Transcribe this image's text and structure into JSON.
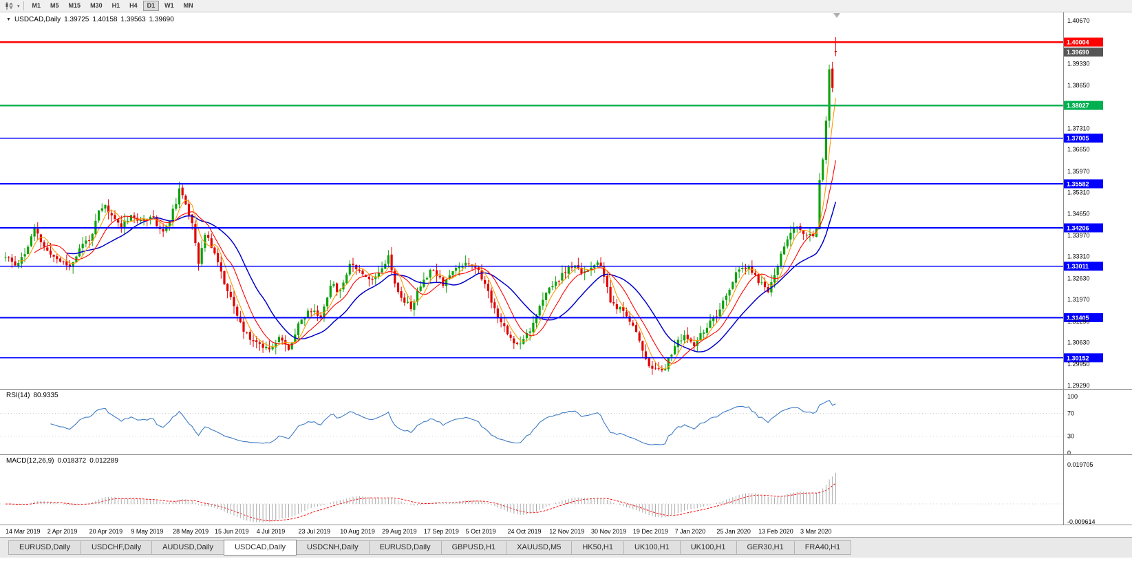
{
  "toolbar": {
    "timeframes": [
      "M1",
      "M5",
      "M15",
      "M30",
      "H1",
      "H4",
      "D1",
      "W1",
      "MN"
    ],
    "active_timeframe": "D1",
    "icons": [
      {
        "name": "chart-type-icon",
        "meaning": "candlestick chart type selector"
      },
      {
        "name": "dropdown-caret-icon",
        "glyph": "▾"
      }
    ]
  },
  "chart_data": {
    "type": "candlestick",
    "symbol": "USDCAD",
    "timeframe": "Daily",
    "header": {
      "symbol_period": "USDCAD,Daily",
      "open": "1.39725",
      "high": "1.40158",
      "low": "1.39563",
      "close": "1.39690"
    },
    "expander_glyph": "▼",
    "price_axis_ticks": [
      "1.40670",
      "1.39330",
      "1.38650",
      "1.37310",
      "1.36650",
      "1.35970",
      "1.35310",
      "1.34650",
      "1.33970",
      "1.33310",
      "1.32630",
      "1.31970",
      "1.31290",
      "1.30630",
      "1.29950",
      "1.29290"
    ],
    "price_range": [
      1.2918,
      1.4093
    ],
    "current_price": {
      "value": "1.39690",
      "bg": "#555555"
    },
    "hlines": [
      {
        "price": "1.40004",
        "color": "#FF0000",
        "width": 2.4
      },
      {
        "price": "1.38027",
        "color": "#00B050",
        "width": 2.4
      },
      {
        "price": "1.37005",
        "color": "#0000FF",
        "width": 1.8
      },
      {
        "price": "1.35582",
        "color": "#0000FF",
        "width": 1.8
      },
      {
        "price": "1.34206",
        "color": "#0000FF",
        "width": 1.8
      },
      {
        "price": "1.33011",
        "color": "#0000FF",
        "width": 1.8
      },
      {
        "price": "1.31405",
        "color": "#0000FF",
        "width": 1.8
      },
      {
        "price": "1.30152",
        "color": "#0000FF",
        "width": 1.8
      }
    ],
    "x_labels": [
      "14 Mar 2019",
      "2 Apr 2019",
      "20 Apr 2019",
      "9 May 2019",
      "28 May 2019",
      "15 Jun 2019",
      "4 Jul 2019",
      "23 Jul 2019",
      "10 Aug 2019",
      "29 Aug 2019",
      "17 Sep 2019",
      "5 Oct 2019",
      "24 Oct 2019",
      "12 Nov 2019",
      "30 Nov 2019",
      "19 Dec 2019",
      "7 Jan 2020",
      "25 Jan 2020",
      "13 Feb 2020",
      "3 Mar 2020"
    ],
    "days_per_label": 13,
    "candle_count": 259,
    "price_path": [
      [
        0,
        1.333
      ],
      [
        3,
        1.3305
      ],
      [
        6,
        1.334
      ],
      [
        9,
        1.3415
      ],
      [
        11,
        1.3378
      ],
      [
        13,
        1.3345
      ],
      [
        17,
        1.3318
      ],
      [
        20,
        1.33
      ],
      [
        24,
        1.337
      ],
      [
        27,
        1.3398
      ],
      [
        29,
        1.347
      ],
      [
        31,
        1.3488
      ],
      [
        33,
        1.3455
      ],
      [
        36,
        1.3428
      ],
      [
        39,
        1.3462
      ],
      [
        42,
        1.3436
      ],
      [
        45,
        1.3462
      ],
      [
        49,
        1.3405
      ],
      [
        52,
        1.3472
      ],
      [
        54,
        1.3535
      ],
      [
        56,
        1.3495
      ],
      [
        58,
        1.344
      ],
      [
        60,
        1.3315
      ],
      [
        62,
        1.3398
      ],
      [
        65,
        1.3348
      ],
      [
        68,
        1.3248
      ],
      [
        71,
        1.3172
      ],
      [
        74,
        1.3098
      ],
      [
        78,
        1.3062
      ],
      [
        82,
        1.3045
      ],
      [
        85,
        1.3082
      ],
      [
        88,
        1.3038
      ],
      [
        91,
        1.3125
      ],
      [
        95,
        1.3165
      ],
      [
        98,
        1.3142
      ],
      [
        101,
        1.3245
      ],
      [
        104,
        1.3222
      ],
      [
        107,
        1.3312
      ],
      [
        111,
        1.3282
      ],
      [
        114,
        1.3255
      ],
      [
        117,
        1.3302
      ],
      [
        119,
        1.3332
      ],
      [
        122,
        1.3215
      ],
      [
        126,
        1.3172
      ],
      [
        130,
        1.3262
      ],
      [
        133,
        1.3295
      ],
      [
        136,
        1.3248
      ],
      [
        139,
        1.3285
      ],
      [
        143,
        1.3315
      ],
      [
        146,
        1.3302
      ],
      [
        149,
        1.3245
      ],
      [
        152,
        1.3168
      ],
      [
        156,
        1.3088
      ],
      [
        159,
        1.3055
      ],
      [
        163,
        1.3105
      ],
      [
        166,
        1.3172
      ],
      [
        169,
        1.3232
      ],
      [
        173,
        1.3272
      ],
      [
        176,
        1.3302
      ],
      [
        179,
        1.3285
      ],
      [
        182,
        1.3295
      ],
      [
        185,
        1.3308
      ],
      [
        188,
        1.3188
      ],
      [
        191,
        1.3165
      ],
      [
        195,
        1.3122
      ],
      [
        198,
        1.3038
      ],
      [
        201,
        1.2975
      ],
      [
        205,
        1.2988
      ],
      [
        208,
        1.3052
      ],
      [
        211,
        1.3085
      ],
      [
        214,
        1.3048
      ],
      [
        217,
        1.3102
      ],
      [
        221,
        1.3145
      ],
      [
        224,
        1.3205
      ],
      [
        227,
        1.3282
      ],
      [
        231,
        1.3295
      ],
      [
        234,
        1.3255
      ],
      [
        237,
        1.3225
      ],
      [
        240,
        1.3305
      ],
      [
        243,
        1.3392
      ],
      [
        246,
        1.3425
      ],
      [
        249,
        1.339
      ],
      [
        251,
        1.3402
      ],
      [
        252,
        1.3425
      ],
      [
        253,
        1.3572
      ],
      [
        254,
        1.3638
      ],
      [
        255,
        1.3748
      ],
      [
        256,
        1.3918
      ],
      [
        257,
        1.3862
      ],
      [
        258,
        1.3969
      ]
    ],
    "last_candle": {
      "open": 1.39725,
      "high": 1.40158,
      "low": 1.39563,
      "close": 1.3969
    },
    "moving_averages": [
      {
        "name": "fast",
        "period": 5,
        "color": "#FF9900",
        "width": 1.1
      },
      {
        "name": "mid",
        "period": 10,
        "color": "#FF0000",
        "width": 1.1
      },
      {
        "name": "slow",
        "period": 20,
        "color": "#0000CC",
        "width": 1.5
      }
    ],
    "rsi": {
      "label": "RSI(14)",
      "value": "80.9335",
      "period": 14,
      "levels": [
        "100",
        "70",
        "30",
        "0"
      ],
      "dotted_levels": [
        70,
        30
      ],
      "line_color": "#3E7BC4"
    },
    "macd": {
      "label": "MACD(12,26,9)",
      "main_value": "0.018372",
      "signal_value": "0.012289",
      "fast": 12,
      "slow": 26,
      "signal": 9,
      "axis_labels": [
        "0.019705",
        "-0.009614"
      ],
      "hist_color": "#A8A8A8",
      "signal_color": "#FF0000"
    },
    "colors": {
      "up_candle": "#0CA30C",
      "down_candle": "#E00000",
      "axis_line": "#8c8c8c",
      "grid_dot": "#cfcfcf"
    }
  },
  "tabs": [
    {
      "label": "EURUSD,Daily",
      "active": false
    },
    {
      "label": "USDCHF,Daily",
      "active": false
    },
    {
      "label": "AUDUSD,Daily",
      "active": false
    },
    {
      "label": "USDCAD,Daily",
      "active": true
    },
    {
      "label": "USDCNH,Daily",
      "active": false
    },
    {
      "label": "EURUSD,Daily",
      "active": false
    },
    {
      "label": "GBPUSD,H1",
      "active": false
    },
    {
      "label": "XAUUSD,M5",
      "active": false
    },
    {
      "label": "HK50,H1",
      "active": false
    },
    {
      "label": "UK100,H1",
      "active": false
    },
    {
      "label": "UK100,H1",
      "active": false
    },
    {
      "label": "GER30,H1",
      "active": false
    },
    {
      "label": "FRA40,H1",
      "active": false
    }
  ]
}
